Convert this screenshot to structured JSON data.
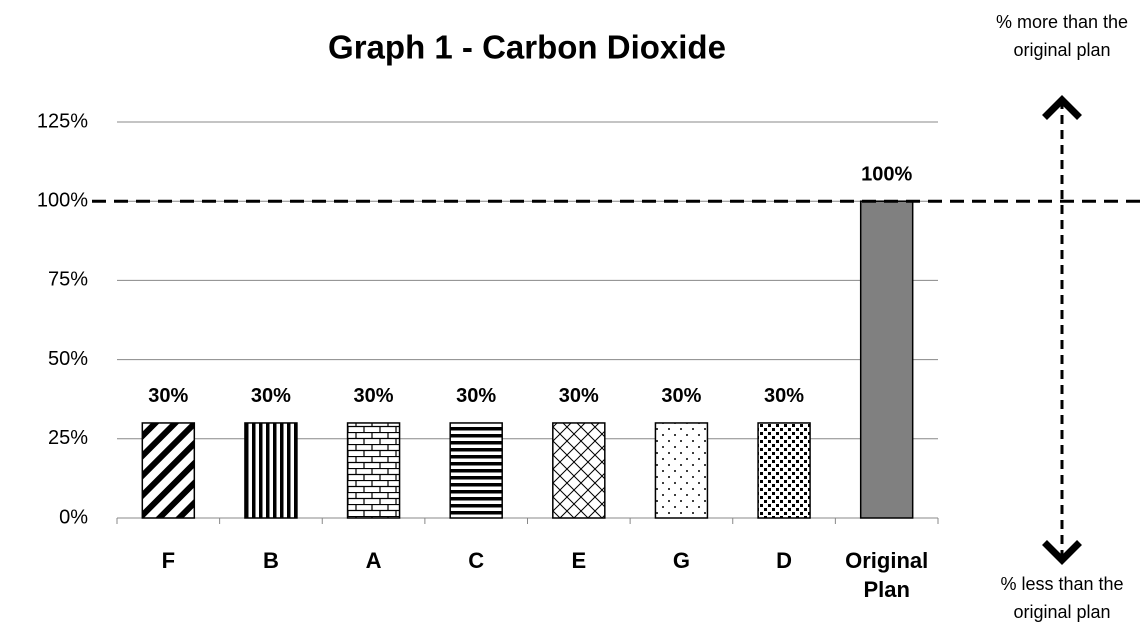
{
  "chart_data": {
    "type": "bar",
    "title": "Graph 1 - Carbon Dioxide",
    "categories": [
      "F",
      "B",
      "A",
      "C",
      "E",
      "G",
      "D",
      "Original Plan"
    ],
    "values": [
      30,
      30,
      30,
      30,
      30,
      30,
      30,
      100
    ],
    "value_labels": [
      "30%",
      "30%",
      "30%",
      "30%",
      "30%",
      "30%",
      "30%",
      "100%"
    ],
    "colors": [
      "#ffffff",
      "#ffffff",
      "#ffffff",
      "#ffffff",
      "#ffffff",
      "#ffffff",
      "#ffffff",
      "#808080"
    ],
    "ylim": [
      0,
      125
    ],
    "yticks": [
      {
        "value": 0,
        "label": "0%"
      },
      {
        "value": 25,
        "label": "25%"
      },
      {
        "value": 50,
        "label": "50%"
      },
      {
        "value": 75,
        "label": "75%"
      },
      {
        "value": 100,
        "label": "100%"
      },
      {
        "value": 125,
        "label": "125%"
      }
    ],
    "grid": true,
    "annotations": [
      "% more than the original plan",
      "% less than the original plan"
    ]
  }
}
